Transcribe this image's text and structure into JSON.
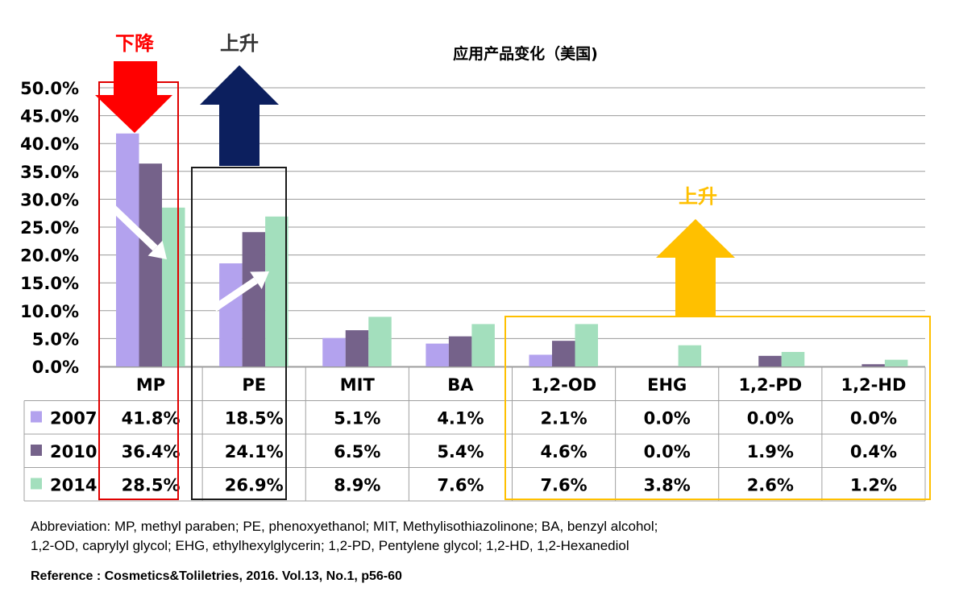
{
  "chart_data": {
    "type": "bar",
    "title": "应用产品变化（美国)",
    "categories": [
      "MP",
      "PE",
      "MIT",
      "BA",
      "1,2-OD",
      "EHG",
      "1,2-PD",
      "1,2-HD"
    ],
    "series": [
      {
        "name": "2007",
        "color": "#b3a2ee",
        "values": [
          41.8,
          18.5,
          5.1,
          4.1,
          2.1,
          0.0,
          0.0,
          0.0
        ],
        "labels": [
          "41.8%",
          "18.5%",
          "5.1%",
          "4.1%",
          "2.1%",
          "0.0%",
          "0.0%",
          "0.0%"
        ]
      },
      {
        "name": "2010",
        "color": "#75628a",
        "values": [
          36.4,
          24.1,
          6.5,
          5.4,
          4.6,
          0.0,
          1.9,
          0.4
        ],
        "labels": [
          "36.4%",
          "24.1%",
          "6.5%",
          "5.4%",
          "4.6%",
          "0.0%",
          "1.9%",
          "0.4%"
        ]
      },
      {
        "name": "2014",
        "color": "#a3dfbd",
        "values": [
          28.5,
          26.9,
          8.9,
          7.6,
          7.6,
          3.8,
          2.6,
          1.2
        ],
        "labels": [
          "28.5%",
          "26.9%",
          "8.9%",
          "7.6%",
          "7.6%",
          "3.8%",
          "2.6%",
          "1.2%"
        ]
      }
    ],
    "ylim": [
      0,
      50
    ],
    "yticks": [
      "0.0%",
      "5.0%",
      "10.0%",
      "15.0%",
      "20.0%",
      "25.0%",
      "30.0%",
      "35.0%",
      "40.0%",
      "45.0%",
      "50.0%"
    ],
    "grid": true,
    "data_table": true,
    "annotations": [
      {
        "text": "下降",
        "color": "#ff0000",
        "arrow": "down",
        "target": "MP"
      },
      {
        "text": "上升",
        "color": "#333333",
        "arrow": "up",
        "target": "PE",
        "arrow_color": "#0c1f5e"
      },
      {
        "text": "上升",
        "color": "#ffc000",
        "arrow": "up",
        "target": "1,2-OD … 1,2-HD"
      }
    ]
  },
  "footnotes": {
    "abbreviation_line1": "Abbreviation: MP, methyl paraben; PE, phenoxyethanol; MIT, Methylisothiazolinone; BA, benzyl alcohol;",
    "abbreviation_line2": "1,2-OD, caprylyl glycol; EHG, ethylhexylglycerin; 1,2-PD, Pentylene glycol; 1,2-HD, 1,2-Hexanediol",
    "reference": "Reference : Cosmetics&Toliletries, 2016. Vol.13, No.1, p56-60"
  }
}
